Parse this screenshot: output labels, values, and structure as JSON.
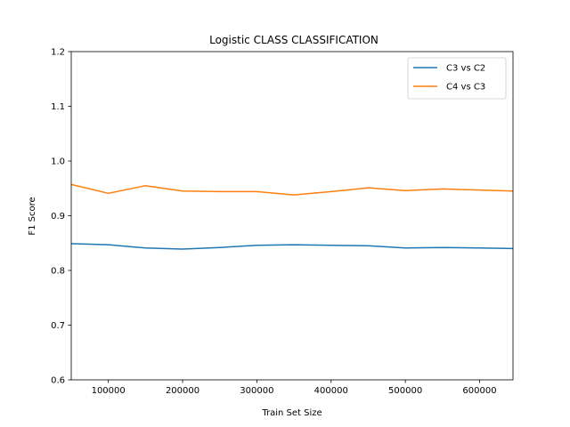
{
  "chart_data": {
    "type": "line",
    "title": "Logistic CLASS CLASSIFICATION",
    "xlabel": "Train Set Size",
    "ylabel": "F1 Score",
    "xlim": [
      50000,
      645000
    ],
    "ylim": [
      0.6,
      1.2
    ],
    "xticks": [
      100000,
      200000,
      300000,
      400000,
      500000,
      600000
    ],
    "xtick_labels": [
      "100000",
      "200000",
      "300000",
      "400000",
      "500000",
      "600000"
    ],
    "yticks": [
      0.6,
      0.7,
      0.8,
      0.9,
      1.0,
      1.1,
      1.2
    ],
    "ytick_labels": [
      "0.6",
      "0.7",
      "0.8",
      "0.9",
      "1.0",
      "1.1",
      "1.2"
    ],
    "grid": false,
    "legend_position": "top-right",
    "x": [
      50000,
      100000,
      150000,
      200000,
      250000,
      300000,
      350000,
      400000,
      450000,
      500000,
      550000,
      600000,
      645000
    ],
    "series": [
      {
        "name": "C3 vs C2",
        "color": "#1f77b4",
        "values": [
          0.849,
          0.847,
          0.841,
          0.839,
          0.842,
          0.846,
          0.847,
          0.846,
          0.845,
          0.841,
          0.842,
          0.841,
          0.84
        ]
      },
      {
        "name": "C4 vs C3",
        "color": "#ff7f0e",
        "values": [
          0.957,
          0.941,
          0.955,
          0.945,
          0.944,
          0.944,
          0.938,
          0.944,
          0.951,
          0.946,
          0.949,
          0.947,
          0.945
        ]
      }
    ]
  }
}
